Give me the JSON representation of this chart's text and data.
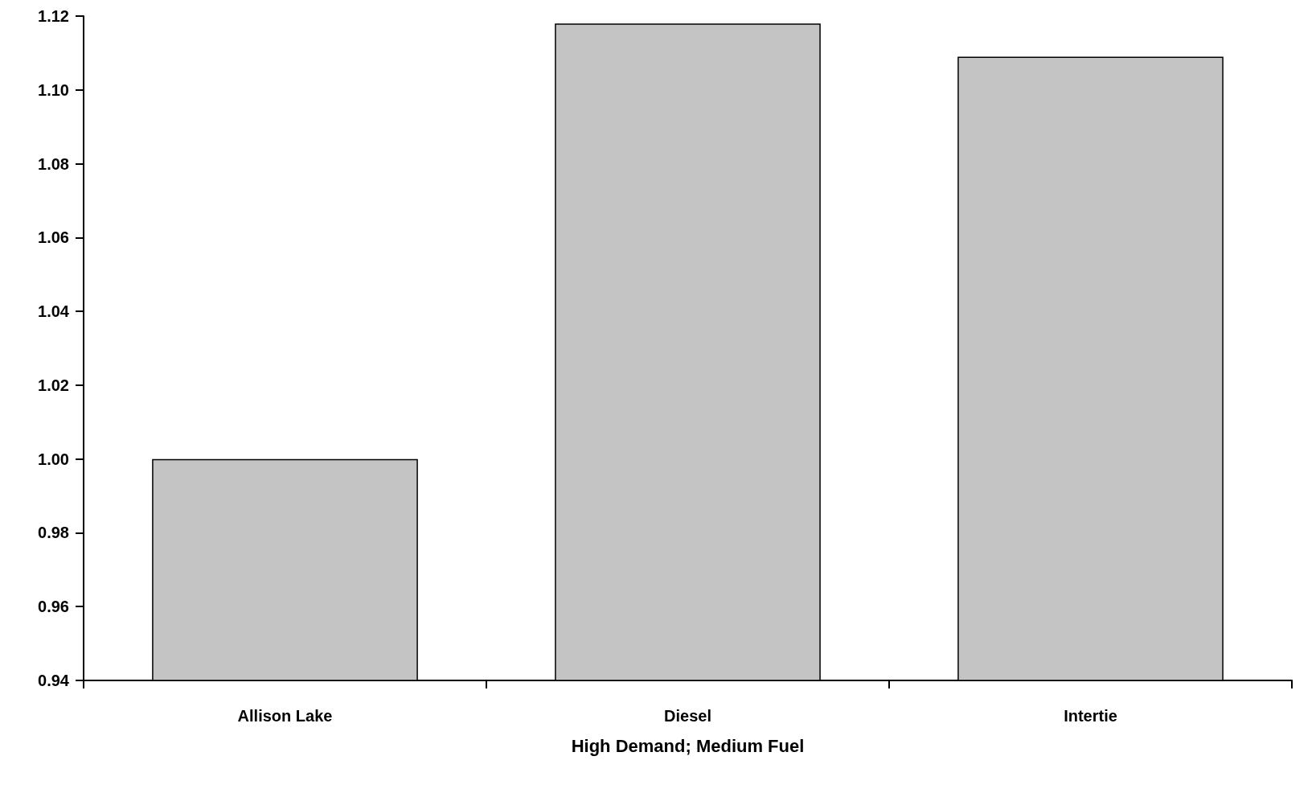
{
  "chart_data": {
    "type": "bar",
    "xlabel": "High Demand; Medium Fuel",
    "categories": [
      "Allison Lake",
      "Diesel",
      "Intertie"
    ],
    "values": [
      1.0,
      1.118,
      1.109
    ],
    "color": "#c4c4c4",
    "ylim": [
      0.94,
      1.12
    ],
    "yticks": [
      {
        "value": 0.94,
        "label": "0.94"
      },
      {
        "value": 0.96,
        "label": "0.96"
      },
      {
        "value": 0.98,
        "label": "0.98"
      },
      {
        "value": 1.0,
        "label": "1.00"
      },
      {
        "value": 1.02,
        "label": "1.02"
      },
      {
        "value": 1.04,
        "label": "1.04"
      },
      {
        "value": 1.06,
        "label": "1.06"
      },
      {
        "value": 1.08,
        "label": "1.08"
      },
      {
        "value": 1.1,
        "label": "1.10"
      },
      {
        "value": 1.12,
        "label": "1.12"
      }
    ],
    "grid": false
  }
}
